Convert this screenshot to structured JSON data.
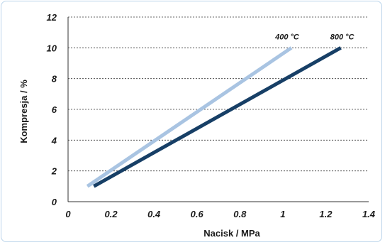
{
  "chart_data": {
    "type": "line",
    "title": "",
    "xlabel": "Nacisk / MPa",
    "ylabel": "Kompresja / %",
    "xlim": [
      0,
      1.4
    ],
    "ylim": [
      0,
      12
    ],
    "x_ticks": [
      "0",
      "0.2",
      "0.4",
      "0.6",
      "0.8",
      "1",
      "1.2",
      "1.4"
    ],
    "y_ticks": [
      "0",
      "2",
      "4",
      "6",
      "8",
      "10",
      "12"
    ],
    "grid": "horizontal dashed",
    "legend": "inline labels at line ends",
    "series": [
      {
        "name": "400 °C",
        "color": "#a9c4e2",
        "x": [
          0.09,
          1.04
        ],
        "y": [
          1.0,
          10.0
        ]
      },
      {
        "name": "800 °C",
        "color": "#173f66",
        "x": [
          0.12,
          1.27
        ],
        "y": [
          1.0,
          10.0
        ]
      }
    ]
  }
}
